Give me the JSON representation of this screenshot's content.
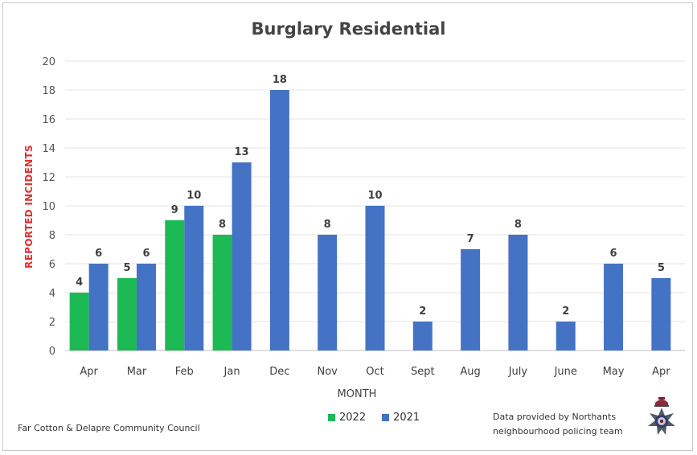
{
  "chart_data": {
    "type": "bar",
    "title": "Burglary Residential",
    "xlabel": "MONTH",
    "ylabel": "REPORTED INCIDENTS",
    "ylim": [
      0,
      20
    ],
    "yticks": [
      0,
      2,
      4,
      6,
      8,
      10,
      12,
      14,
      16,
      18,
      20
    ],
    "grid": true,
    "legend_position": "bottom",
    "categories": [
      "Apr",
      "Mar",
      "Feb",
      "Jan",
      "Dec",
      "Nov",
      "Oct",
      "Sept",
      "Aug",
      "July",
      "June",
      "May",
      "Apr"
    ],
    "series": [
      {
        "name": "2022",
        "color": "#1db954",
        "values": [
          4,
          5,
          9,
          8,
          null,
          null,
          null,
          null,
          null,
          null,
          null,
          null,
          null
        ]
      },
      {
        "name": "2021",
        "color": "#4472c4",
        "values": [
          6,
          6,
          10,
          13,
          18,
          8,
          10,
          2,
          7,
          8,
          2,
          6,
          5
        ]
      }
    ]
  },
  "footer": {
    "source": "Far Cotton & Delapre Community Council",
    "credit_line1": "Data provided by Northants",
    "credit_line2": "neighbourhood policing team",
    "badge_icon": "police-badge-icon"
  }
}
